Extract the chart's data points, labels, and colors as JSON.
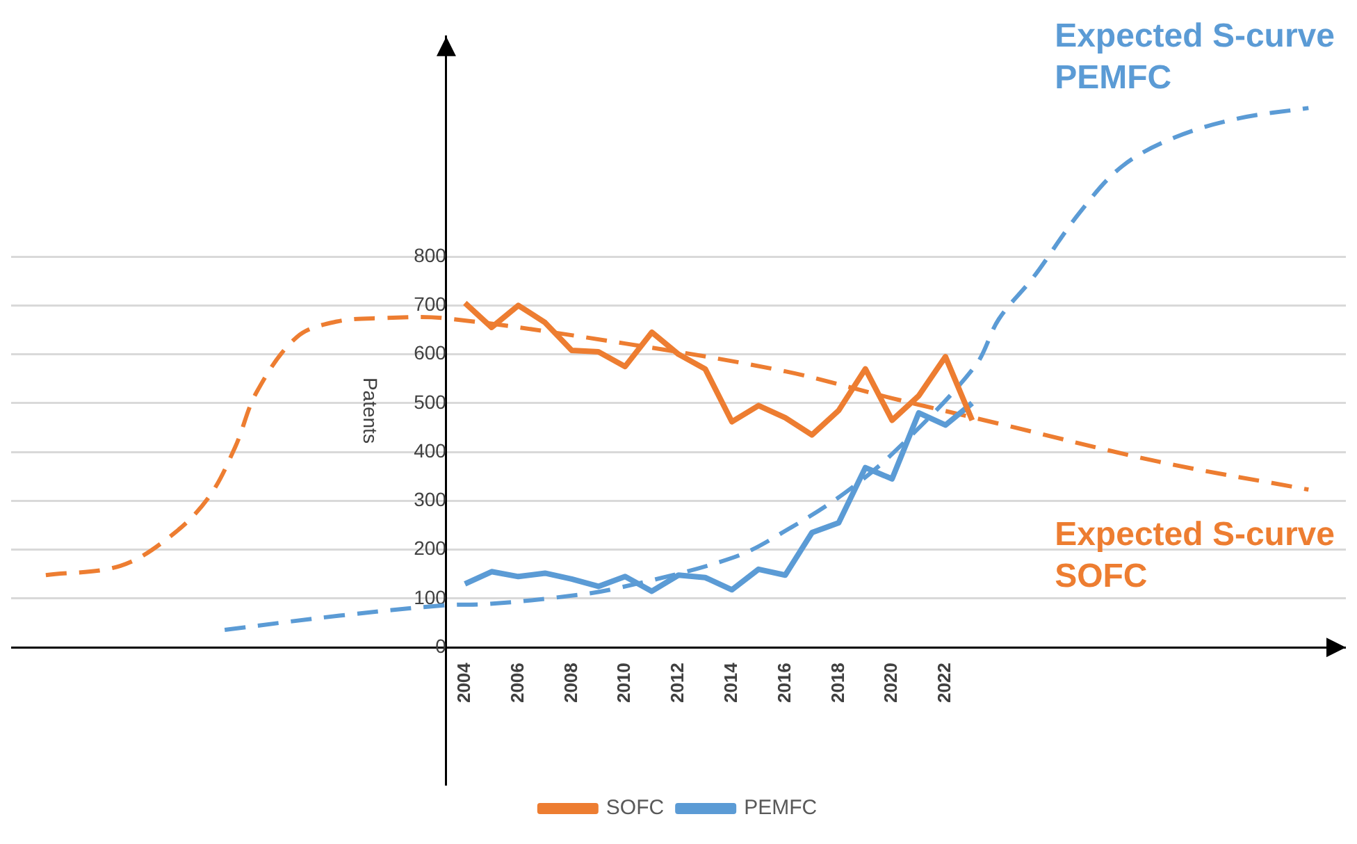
{
  "chart_data": {
    "type": "line",
    "ylabel": "Patents",
    "x": [
      2004,
      2005,
      2006,
      2007,
      2008,
      2009,
      2010,
      2011,
      2012,
      2013,
      2014,
      2015,
      2016,
      2017,
      2018,
      2019,
      2020,
      2021,
      2022,
      2023
    ],
    "series": [
      {
        "name": "SOFC",
        "color": "#ed7d31",
        "values": [
          705,
          655,
          700,
          665,
          608,
          605,
          575,
          645,
          600,
          570,
          462,
          495,
          470,
          435,
          485,
          570,
          465,
          515,
          595,
          465
        ]
      },
      {
        "name": "PEMFC",
        "color": "#5b9bd5",
        "values": [
          130,
          155,
          145,
          152,
          140,
          125,
          145,
          115,
          148,
          143,
          118,
          160,
          148,
          235,
          255,
          368,
          345,
          480,
          455,
          500
        ]
      },
      {
        "name": "Expected S-curve PEMFC",
        "color": "#5b9bd5",
        "type": "line",
        "line_style": "dashed",
        "x": [
          1995.0,
          1999.3,
          2003.2,
          2004.9,
          2007.4,
          2009.6,
          2014.1,
          2016.2,
          2018.2,
          2020.1,
          2023.1,
          2024.0,
          2025.3,
          2027.0,
          2028.6,
          2030.6,
          2033.0,
          2035.6
        ],
        "values": [
          36,
          65,
          86,
          89,
          102,
          120,
          185,
          245,
          315,
          401,
          575,
          672,
          758,
          888,
          984,
          1044,
          1083,
          1104
        ]
      },
      {
        "name": "Expected S-curve SOFC",
        "color": "#ed7d31",
        "type": "line",
        "line_style": "dashed",
        "x": [
          1988.3,
          1991.1,
          1993.0,
          1994.4,
          1995.4,
          1996.2,
          1997.7,
          1999.2,
          2000.9,
          2003.2,
          2010,
          2016,
          2020,
          2024,
          2030,
          2035.6
        ],
        "values": [
          148,
          167,
          229,
          307,
          411,
          523,
          635,
          667,
          674,
          674,
          622,
          565,
          510,
          458,
          380,
          323
        ]
      }
    ],
    "xlim": [
      1987,
      2037
    ],
    "ylim": [
      -280,
      1250
    ],
    "xticks": [
      2004,
      2006,
      2008,
      2010,
      2012,
      2014,
      2016,
      2018,
      2020,
      2022
    ],
    "yticks": [
      0,
      100,
      200,
      300,
      400,
      500,
      600,
      700,
      800
    ],
    "grid": "y",
    "legend": "bottom",
    "marker": "none"
  }
}
